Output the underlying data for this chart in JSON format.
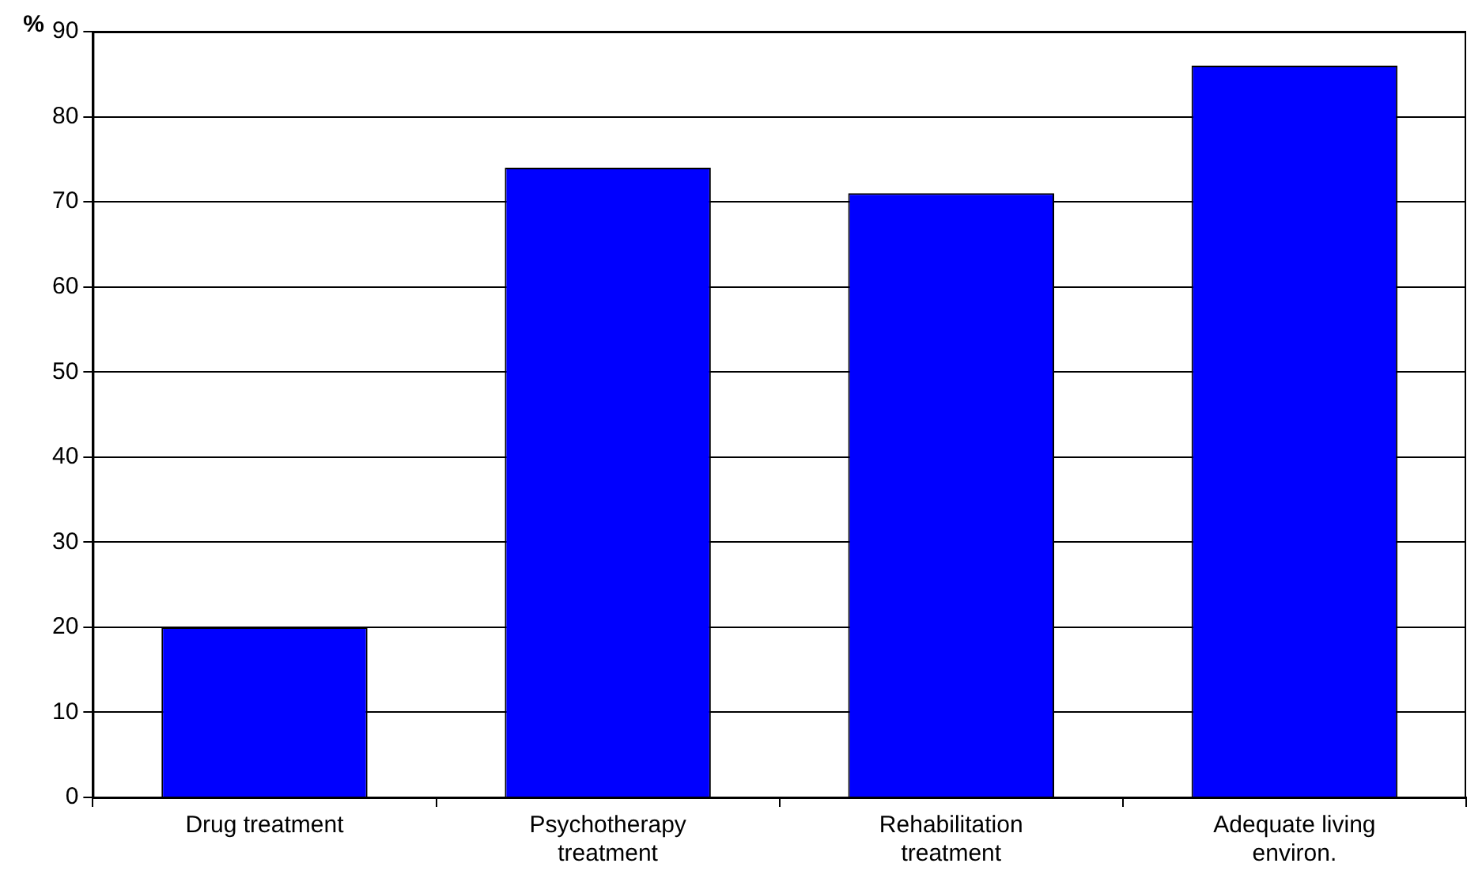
{
  "chart_data": {
    "type": "bar",
    "ylabel": "%",
    "categories": [
      "Drug treatment",
      "Psychotherapy treatment",
      "Rehabilitation treatment",
      "Adequate living environ."
    ],
    "values": [
      20,
      74,
      71,
      86
    ],
    "color": "#0000ff",
    "ylim": [
      0,
      90
    ],
    "yticks": [
      0,
      10,
      20,
      30,
      40,
      50,
      60,
      70,
      80,
      90
    ],
    "grid": "y",
    "legend": false
  }
}
